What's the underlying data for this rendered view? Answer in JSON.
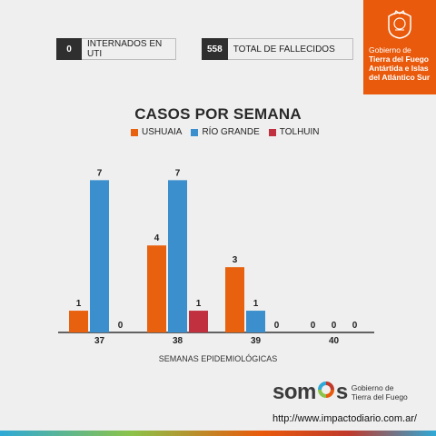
{
  "stats": [
    {
      "value": "0",
      "label": "INTERNADOS EN UTI"
    },
    {
      "value": "558",
      "label": "TOTAL DE FALLECIDOS"
    }
  ],
  "org": {
    "line1": "Gobierno de",
    "line2": "Tierra del Fuego",
    "line3": "Antártida e Islas",
    "line4": "del Atlántico Sur"
  },
  "chart_data": {
    "type": "bar",
    "title": "CASOS POR SEMANA",
    "xlabel": "SEMANAS EPIDEMIOLÓGICAS",
    "ylabel": "",
    "categories": [
      "37",
      "38",
      "39",
      "40"
    ],
    "series": [
      {
        "name": "USHUAIA",
        "color": "#e8610f",
        "values": [
          1,
          4,
          3,
          0
        ]
      },
      {
        "name": "RÍO GRANDE",
        "color": "#3a8fcc",
        "values": [
          7,
          7,
          1,
          0
        ]
      },
      {
        "name": "TOLHUIN",
        "color": "#c0303f",
        "values": [
          0,
          1,
          0,
          0
        ]
      }
    ],
    "ylim": [
      0,
      7.6
    ],
    "grid": false,
    "legend": "top-center"
  },
  "footer": {
    "brand": "somos",
    "brand_sub1": "Gobierno de",
    "brand_sub2": "Tierra del Fuego",
    "url": "http://www.impactodiario.com.ar/"
  }
}
